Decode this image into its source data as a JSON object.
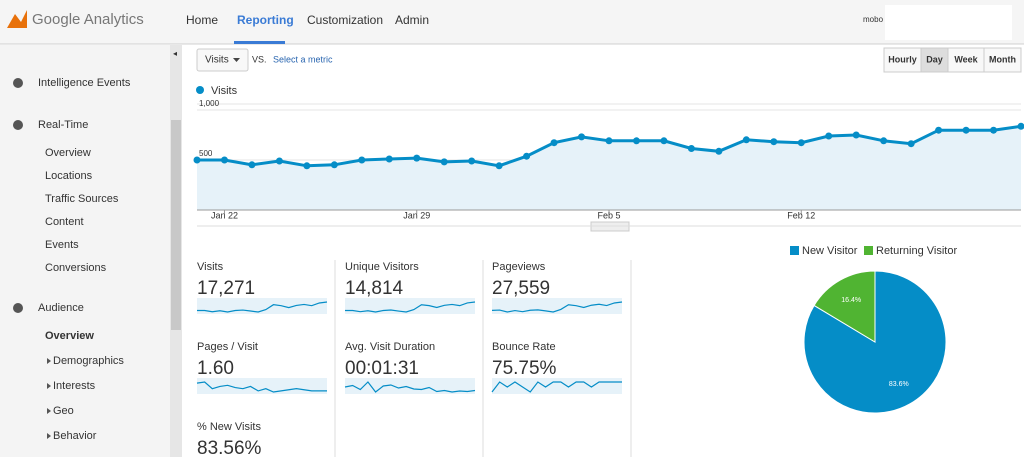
{
  "header": {
    "logo": "Google Analytics",
    "nav": [
      "Home",
      "Reporting",
      "Customization",
      "Admin"
    ],
    "user": "mobo"
  },
  "sidebar": [
    {
      "title": "Intelligence Events",
      "items": []
    },
    {
      "title": "Real-Time",
      "items": [
        "Overview",
        "Locations",
        "Traffic Sources",
        "Content",
        "Events",
        "Conversions"
      ]
    },
    {
      "title": "Audience",
      "items": [
        "Overview",
        "Demographics",
        "Interests",
        "Geo",
        "Behavior"
      ]
    }
  ],
  "toolbar": {
    "metric": "Visits",
    "vs": "VS.",
    "select": "Select a metric",
    "intervals": [
      "Hourly",
      "Day",
      "Week",
      "Month"
    ]
  },
  "chart_data": [
    {
      "type": "line",
      "categories": [
        null,
        "Jan 22",
        null,
        null,
        null,
        null,
        null,
        null,
        "Jan 29",
        null,
        null,
        null,
        null,
        null,
        null,
        "Feb 5",
        null,
        null,
        null,
        null,
        null,
        null,
        "Feb 12",
        null,
        null,
        null,
        null,
        null,
        null,
        null,
        null
      ],
      "series": [
        {
          "name": "Visits",
          "color": "#058dc7",
          "values": [
            500,
            500,
            452,
            490,
            442,
            452,
            500,
            510,
            519,
            481,
            490,
            442,
            538,
            673,
            731,
            692,
            692,
            692,
            615,
            587,
            702,
            683,
            673,
            740,
            750,
            692,
            663,
            798,
            798,
            798,
            837
          ]
        }
      ],
      "ylim": [
        0,
        1000
      ],
      "yticks": [
        500,
        {
          "value": 1000,
          "label": "1,000"
        }
      ],
      "grid": true
    },
    {
      "type": "pie",
      "categories": [
        "New Visitor",
        "Returning Visitor"
      ],
      "values": [
        83.6,
        16.4
      ],
      "value_labels": [
        "83.6%",
        "16.4%"
      ],
      "colors": [
        "#058dc7",
        "#50b432"
      ]
    }
  ],
  "metrics": [
    {
      "label": "Visits",
      "value": "17,271",
      "sparkline": [
        500,
        500,
        452,
        490,
        442,
        500,
        519,
        481,
        442,
        538,
        731,
        692,
        615,
        702,
        740,
        692,
        798,
        837
      ]
    },
    {
      "label": "Unique Visitors",
      "value": "14,814",
      "sparkline": [
        430,
        430,
        390,
        420,
        380,
        430,
        445,
        410,
        380,
        460,
        620,
        590,
        530,
        600,
        630,
        590,
        680,
        710
      ]
    },
    {
      "label": "Pageviews",
      "value": "27,559",
      "sparkline": [
        800,
        820,
        700,
        790,
        720,
        810,
        830,
        770,
        700,
        860,
        1150,
        1090,
        980,
        1120,
        1180,
        1100,
        1260,
        1320
      ]
    },
    {
      "label": "Pages / Visit",
      "value": "1.60",
      "sparkline": [
        1.65,
        1.66,
        1.6,
        1.62,
        1.63,
        1.61,
        1.6,
        1.62,
        1.58,
        1.6,
        1.57,
        1.58,
        1.59,
        1.6,
        1.59,
        1.58,
        1.58,
        1.58
      ]
    },
    {
      "label": "Avg. Visit Duration",
      "value": "00:01:31",
      "sparkline": [
        95,
        98,
        90,
        105,
        85,
        97,
        99,
        93,
        96,
        91,
        90,
        94,
        86,
        88,
        85,
        87,
        86,
        88
      ]
    },
    {
      "label": "Bounce Rate",
      "value": "75.75%",
      "sparkline": [
        74,
        76,
        75,
        76,
        75,
        74,
        76,
        75,
        76,
        76,
        75,
        76,
        76,
        75,
        76,
        76,
        76,
        76
      ]
    },
    {
      "label": "% New Visits",
      "value": "83.56%",
      "sparkline": []
    }
  ]
}
